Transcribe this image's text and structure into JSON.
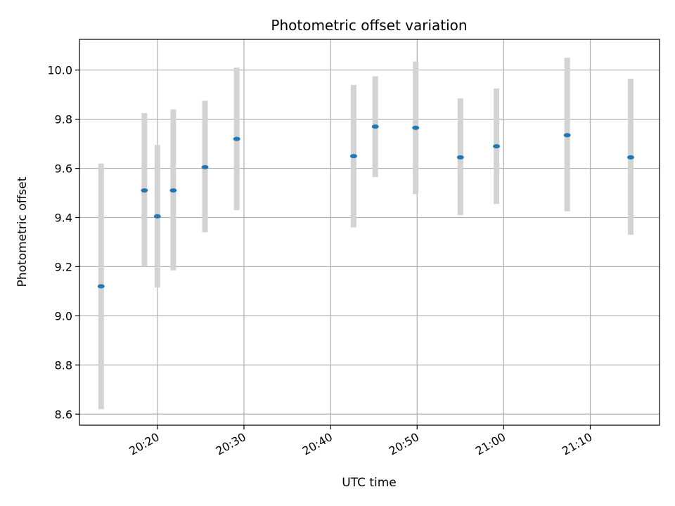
{
  "chart_data": {
    "type": "scatter",
    "title": "Photometric offset variation",
    "xlabel": "UTC time",
    "ylabel": "Photometric offset",
    "x_unit": "time of day",
    "x_range": [
      "20:11",
      "21:18"
    ],
    "ylim": [
      8.555,
      10.125
    ],
    "x_ticks": [
      "20:20",
      "20:30",
      "20:40",
      "20:50",
      "21:00",
      "21:10"
    ],
    "y_ticks": [
      "8.6",
      "8.8",
      "9.0",
      "9.2",
      "9.4",
      "9.6",
      "9.8",
      "10.0"
    ],
    "grid": true,
    "point_color": "#1f77b4",
    "errorbar_color": "#d3d3d3",
    "points": [
      {
        "x": "20:13:30",
        "y": 9.12,
        "low": 8.62,
        "high": 9.62
      },
      {
        "x": "20:18:30",
        "y": 9.51,
        "low": 9.2,
        "high": 9.825
      },
      {
        "x": "20:20:00",
        "y": 9.405,
        "low": 9.115,
        "high": 9.695
      },
      {
        "x": "20:21:50",
        "y": 9.51,
        "low": 9.185,
        "high": 9.84
      },
      {
        "x": "20:25:30",
        "y": 9.605,
        "low": 9.34,
        "high": 9.875
      },
      {
        "x": "20:29:10",
        "y": 9.72,
        "low": 9.43,
        "high": 10.01
      },
      {
        "x": "20:42:40",
        "y": 9.65,
        "low": 9.36,
        "high": 9.94
      },
      {
        "x": "20:45:10",
        "y": 9.77,
        "low": 9.565,
        "high": 9.975
      },
      {
        "x": "20:49:50",
        "y": 9.765,
        "low": 9.495,
        "high": 10.035
      },
      {
        "x": "20:55:00",
        "y": 9.645,
        "low": 9.41,
        "high": 9.885
      },
      {
        "x": "20:59:10",
        "y": 9.69,
        "low": 9.455,
        "high": 9.925
      },
      {
        "x": "21:07:20",
        "y": 9.735,
        "low": 9.425,
        "high": 10.05
      },
      {
        "x": "21:14:40",
        "y": 9.645,
        "low": 9.33,
        "high": 9.965
      }
    ]
  }
}
